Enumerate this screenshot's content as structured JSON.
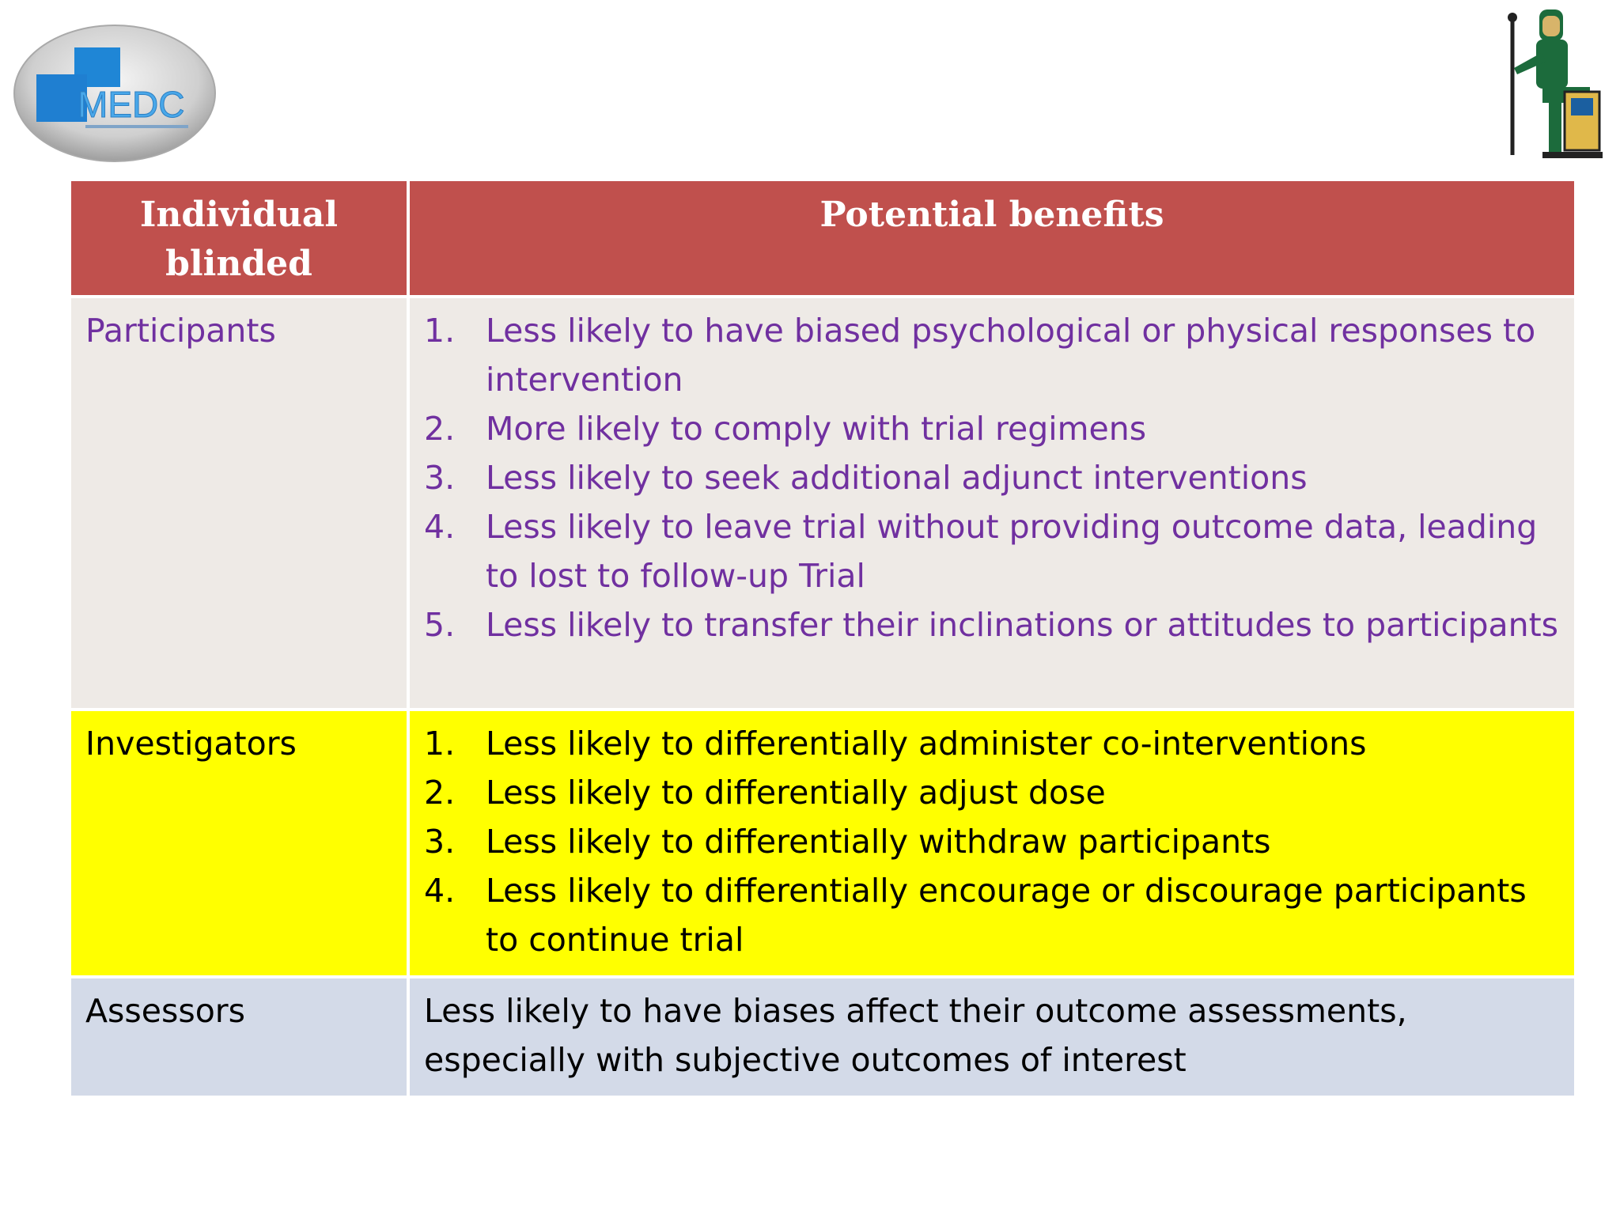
{
  "logos": {
    "left": {
      "text": "MEDC",
      "icon": "medc-logo",
      "colors": {
        "blue": "#1f7fd1",
        "grey": "#b9b9b9"
      }
    },
    "right": {
      "icon": "seated-scribe-figure"
    }
  },
  "colors": {
    "header_bg": "#c0504d",
    "participants_bg": "#eeeae6",
    "participants_text": "#7030a0",
    "investigators_bg": "#ffff00",
    "assessors_bg": "#d3dae8"
  },
  "table": {
    "headers": [
      "Individual blinded",
      "Potential benefits"
    ],
    "rows": [
      {
        "individual": "Participants",
        "benefits": [
          "Less likely to have biased psychological or physical responses to intervention",
          "More likely to comply with trial regimens",
          "Less likely to seek additional adjunct interventions",
          "Less likely to leave trial without providing outcome data, leading to lost to follow-up Trial",
          "Less likely to transfer their inclinations or attitudes to participants"
        ]
      },
      {
        "individual": "Investigators",
        "benefits": [
          "Less likely to differentially administer co-interventions",
          "Less likely to differentially adjust dose",
          "Less likely to differentially withdraw participants",
          "Less likely to differentially encourage or discourage participants to continue trial"
        ]
      },
      {
        "individual": "Assessors",
        "benefit_text": "Less likely to have biases affect their outcome assessments, especially with subjective outcomes of interest"
      }
    ]
  }
}
